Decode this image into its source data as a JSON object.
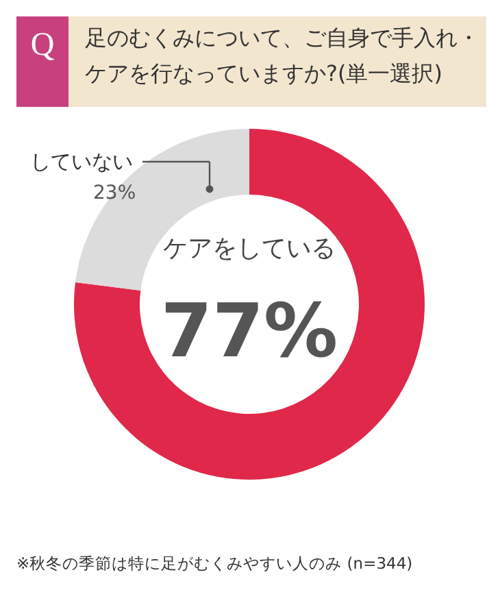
{
  "chart_data": {
    "type": "donut",
    "title": "足のむくみについて、ご自身で手入れ・ケアを行なっていますか?(単一選択)",
    "categories": [
      "ケアをしている",
      "していない"
    ],
    "values": [
      77,
      23
    ],
    "colors": [
      "#e0284a",
      "#dcdcdc"
    ],
    "value_labels": [
      "77%",
      "23%"
    ],
    "legend": false,
    "annotations": [
      "Q",
      "※秋冬の季節は特に足がむくみやすい人のみ (n=344)"
    ]
  }
}
